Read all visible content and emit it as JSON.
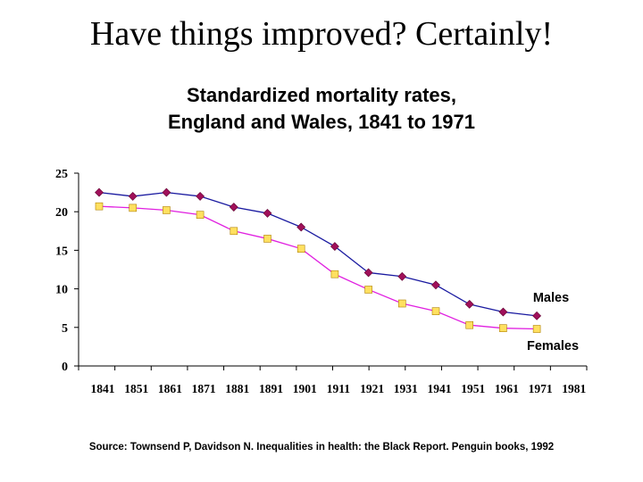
{
  "slide": {
    "title": "Have things improved? Certainly!",
    "source": "Source: Townsend P, Davidson N. Inequalities in health: the Black Report.  Penguin books, 1992"
  },
  "chart_data": {
    "type": "line",
    "title": "Standardized mortality rates,",
    "subtitle": "England and Wales, 1841 to 1971",
    "x": [
      1841,
      1851,
      1861,
      1871,
      1881,
      1891,
      1901,
      1911,
      1921,
      1931,
      1941,
      1951,
      1961,
      1971,
      1981
    ],
    "x_ticks": [
      "1841",
      "1851",
      "1861",
      "1871",
      "1881",
      "1891",
      "1901",
      "1911",
      "1921",
      "1931",
      "1941",
      "1951",
      "1961",
      "1971",
      "1981"
    ],
    "y_ticks": [
      "0",
      "5",
      "10",
      "15",
      "20",
      "25"
    ],
    "ylim": [
      0,
      25
    ],
    "xlabel": "",
    "ylabel": "",
    "grid": false,
    "series": [
      {
        "name": "Males",
        "x": [
          1841,
          1851,
          1861,
          1871,
          1881,
          1891,
          1901,
          1911,
          1921,
          1931,
          1941,
          1951,
          1961,
          1971
        ],
        "values": [
          22.5,
          22.0,
          22.5,
          22.0,
          20.6,
          19.8,
          18.0,
          15.5,
          12.1,
          11.6,
          10.5,
          8.0,
          7.0,
          6.5
        ],
        "line_color": "#1a1aa0",
        "marker_color": "#a0105a",
        "marker": "diamond"
      },
      {
        "name": "Females",
        "x": [
          1841,
          1851,
          1861,
          1871,
          1881,
          1891,
          1901,
          1911,
          1921,
          1931,
          1941,
          1951,
          1961,
          1971
        ],
        "values": [
          20.7,
          20.5,
          20.2,
          19.6,
          17.5,
          16.5,
          15.2,
          11.9,
          9.9,
          8.1,
          7.1,
          5.3,
          4.9,
          4.8
        ],
        "line_color": "#e020e0",
        "marker_color": "#ffe060",
        "marker": "square"
      }
    ]
  }
}
